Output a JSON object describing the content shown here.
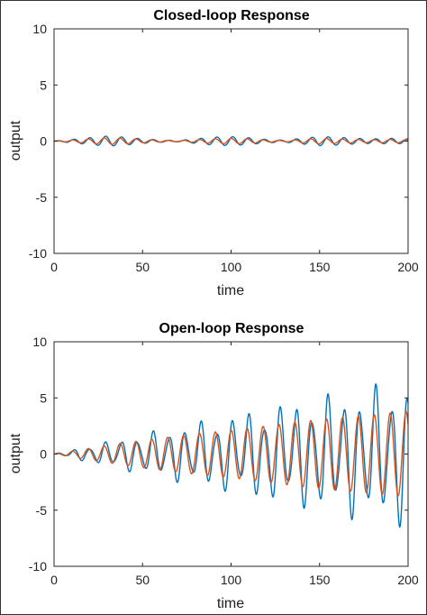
{
  "chart_data": [
    {
      "type": "line",
      "title": "Closed-loop Response",
      "xlabel": "time",
      "ylabel": "output",
      "xlim": [
        0,
        200
      ],
      "ylim": [
        -10,
        10
      ],
      "xticks": [
        0,
        50,
        100,
        150,
        200
      ],
      "yticks": [
        10,
        5,
        0,
        -5,
        -10
      ],
      "grid": false,
      "series": [
        {
          "color": "#0072BD",
          "envelope": {
            "x": [
              0,
              10,
              20,
              30,
              40,
              50,
              60,
              70,
              80,
              90,
              100,
              110,
              120,
              130,
              140,
              150,
              160,
              170,
              180,
              190,
              200
            ],
            "amp": [
              0,
              0.15,
              0.3,
              0.45,
              0.35,
              0.2,
              0.1,
              0.05,
              0.2,
              0.35,
              0.4,
              0.3,
              0.15,
              0.08,
              0.25,
              0.4,
              0.35,
              0.25,
              0.2,
              0.25,
              0.2
            ]
          },
          "freq": 0.7
        },
        {
          "color": "#D95319",
          "envelope": {
            "x": [
              0,
              10,
              20,
              30,
              40,
              50,
              60,
              70,
              80,
              90,
              100,
              110,
              120,
              130,
              140,
              150,
              160,
              170,
              180,
              190,
              200
            ],
            "amp": [
              0,
              0.1,
              0.2,
              0.3,
              0.25,
              0.15,
              0.08,
              0.04,
              0.12,
              0.2,
              0.25,
              0.2,
              0.1,
              0.05,
              0.15,
              0.25,
              0.2,
              0.15,
              0.12,
              0.15,
              0.12
            ]
          },
          "freq": 0.7
        }
      ]
    },
    {
      "type": "line",
      "title": "Open-loop Response",
      "xlabel": "time",
      "ylabel": "output",
      "xlim": [
        0,
        200
      ],
      "ylim": [
        -10,
        10
      ],
      "xticks": [
        0,
        50,
        100,
        150,
        200
      ],
      "yticks": [
        10,
        5,
        0,
        -5,
        -10
      ],
      "grid": false,
      "series": [
        {
          "color": "#0072BD",
          "envelope": {
            "x": [
              0,
              20,
              40,
              60,
              80,
              100,
              120,
              140,
              160,
              180,
              200
            ],
            "amp": [
              0,
              0.8,
              1.5,
              2.2,
              2.9,
              3.6,
              4.3,
              5.0,
              5.6,
              6.2,
              6.7
            ]
          },
          "freq": 0.7,
          "beat": 0.5
        },
        {
          "color": "#D95319",
          "envelope": {
            "x": [
              0,
              20,
              40,
              60,
              80,
              100,
              120,
              140,
              160,
              180,
              200
            ],
            "amp": [
              0,
              0.5,
              1.0,
              1.4,
              1.8,
              2.1,
              2.5,
              2.9,
              3.2,
              3.5,
              3.8
            ]
          },
          "freq": 0.7
        }
      ]
    }
  ]
}
